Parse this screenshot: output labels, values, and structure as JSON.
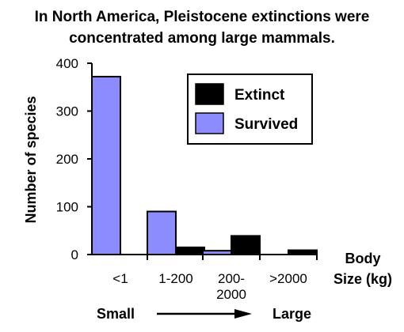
{
  "chart_data": {
    "type": "bar",
    "title_line1": "In North America, Pleistocene extinctions were",
    "title_line2": "concentrated among large mammals.",
    "ylabel": "Number of species",
    "xlabel_line1": "Body",
    "xlabel_line2": "Size (kg)",
    "ylim": [
      0,
      400
    ],
    "yticks": [
      "0",
      "100",
      "200",
      "300",
      "400"
    ],
    "categories": [
      {
        "line1": "<1",
        "line2": ""
      },
      {
        "line1": "1-200",
        "line2": ""
      },
      {
        "line1": "200-",
        "line2": "2000"
      },
      {
        "line1": ">2000",
        "line2": ""
      }
    ],
    "series": [
      {
        "name": "Survived",
        "color": "#8c8cff",
        "values": [
          372,
          90,
          8,
          0
        ]
      },
      {
        "name": "Extinct",
        "color": "#000000",
        "values": [
          0,
          15,
          39,
          9
        ]
      }
    ],
    "legend_position": "top-right",
    "scale": {
      "small": "Small",
      "large": "Large"
    }
  }
}
